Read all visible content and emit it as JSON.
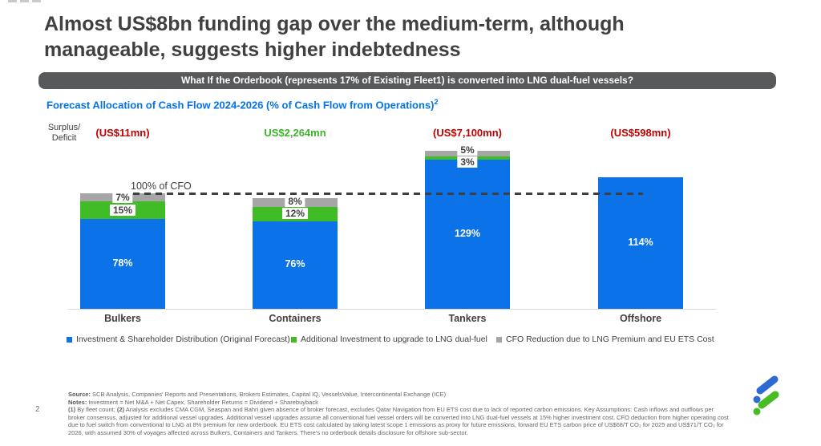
{
  "slide": {
    "title": "Almost US$8bn funding gap over the medium-term, although manageable, suggests higher indebtedness",
    "banner_text": "What If the Orderbook (represents 17% of Existing Fleet1) is converted into LNG dual-fuel vessels?",
    "page_number": "2"
  },
  "chart": {
    "heading": "Forecast Allocation of Cash Flow 2024-2026 (% of Cash Flow from Operations)",
    "heading_sup": "2",
    "y_axis_label_line1": "Surplus/",
    "y_axis_label_line2": "Deficit",
    "reference_label": "100% of CFO"
  },
  "chart_data": {
    "type": "bar",
    "stacked": true,
    "title": "Forecast Allocation of Cash Flow 2024-2026 (% of Cash Flow from Operations)",
    "unit": "%",
    "ylabel": "Surplus/Deficit",
    "categories": [
      "Bulkers",
      "Containers",
      "Tankers",
      "Offshore"
    ],
    "series": [
      {
        "name": "Investment & Shareholder Distribution (Original Forecast)",
        "color": "#0B72E7",
        "values": [
          78,
          76,
          129,
          114
        ]
      },
      {
        "name": "Additional Investment to upgrade to LNG dual-fuel",
        "color": "#3FBC26",
        "values": [
          15,
          12,
          3,
          0
        ]
      },
      {
        "name": "CFO Reduction due to LNG Premium and EU ETS Cost",
        "color": "#A6A6A6",
        "values": [
          7,
          8,
          5,
          0
        ]
      }
    ],
    "surplus_deficit_values": [
      {
        "text": "(US$11mn)",
        "sentiment": "deficit",
        "color": "#C00000"
      },
      {
        "text": "US$2,264mn",
        "sentiment": "surplus",
        "color": "#3DB32B"
      },
      {
        "text": "(US$7,100mn)",
        "sentiment": "deficit",
        "color": "#C00000"
      },
      {
        "text": "(US$598mn)",
        "sentiment": "deficit",
        "color": "#C00000"
      }
    ],
    "reference_line": {
      "value": 100,
      "label": "100% of CFO",
      "style": "dashed"
    },
    "legend_position": "bottom",
    "grid": false
  },
  "legend": {
    "items": [
      {
        "label": "Investment & Shareholder Distribution (Original Forecast)",
        "color": "#0B72E7"
      },
      {
        "label": "Additional Investment to upgrade to LNG dual-fuel",
        "color": "#3FBC26"
      },
      {
        "label": "CFO Reduction due to LNG Premium and EU ETS Cost",
        "color": "#A6A6A6"
      }
    ]
  },
  "footnotes": {
    "source_label": "Source:",
    "source_text": " SCB Analysis, Companies' Reports and Presentations, Brokers Estimates, Capital IQ, VesselsValue, Intercontinental Exchange (ICE)",
    "notes_label": "Notes:",
    "notes_text": " Investment = Net M&A + Net Capex, Shareholder Returns = Dividend + Sharebuyback",
    "body_segments": [
      {
        "text": "(1)",
        "bold": true
      },
      {
        "text": " By fleet count; ",
        "bold": false
      },
      {
        "text": "(2)",
        "bold": true
      },
      {
        "text": " Analysis excludes CMA CGM, Seaspan and Bahri given absence of broker forecast, excludes Qatar Navigation from EU ETS cost due to lack of reported carbon emissions. Key Assumptions: Cash inflows and outflows per broker consensus, adjusted for additional vessel upgrades. Additional vessel upgrades assume all conventional fuel vessel orders will be converted into LNG dual-fuel vessels at 15% higher investment cost. CFO deduction from higher operating cost due to fuel switch from conventional to LNG at 8% premium for new orderbook. EU ETS cost calculated by taking latest scope 1 emissions as proxy for future emissions, forward EU ETS carbon price of US$68/T CO₂ for 2025 and US$71/T CO₂ for 2026, with assumed 30% of voyages affected across Bulkers, Containers and Tankers. There's no orderbook details disclosure for offshore sub-sector.",
        "bold": false
      }
    ]
  },
  "logo": {
    "name": "Standard Chartered trustmark",
    "blue": "#2D6BD2",
    "green": "#46BD22"
  }
}
